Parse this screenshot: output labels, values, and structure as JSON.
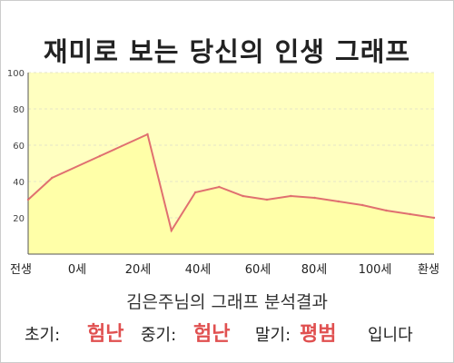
{
  "title": "재미로 보는 당신의 인생 그래프",
  "subtitle": "김은주님의 그래프 분석결과",
  "result": {
    "early_label": "초기:",
    "early_value": "험난",
    "mid_label": "중기:",
    "mid_value": "험난",
    "late_label": "말기:",
    "late_value": "평범",
    "suffix": "입니다"
  },
  "colors": {
    "line": "#e07070",
    "fill": "#ffffc0",
    "highlight": "#e05050"
  },
  "chart_data": {
    "type": "area",
    "x": [
      -5,
      0,
      10,
      20,
      25,
      30,
      35,
      40,
      45,
      50,
      55,
      60,
      65,
      70,
      75,
      80
    ],
    "y": [
      30,
      42,
      54,
      66,
      13,
      34,
      37,
      32,
      30,
      32,
      31,
      29,
      27,
      24,
      22,
      20
    ],
    "ylim": [
      0,
      100
    ],
    "yticks": [
      20,
      40,
      60,
      80,
      100
    ],
    "xticks": [
      {
        "label": "전생",
        "x": -7
      },
      {
        "label": "0세",
        "x": 0
      },
      {
        "label": "20세",
        "x": 20
      },
      {
        "label": "40세",
        "x": 40
      },
      {
        "label": "60세",
        "x": 60
      },
      {
        "label": "80세",
        "x": 80
      },
      {
        "label": "100세",
        "x": 100
      },
      {
        "label": "환생",
        "x": 120
      }
    ],
    "grid": true,
    "title": "",
    "xlabel": "",
    "ylabel": ""
  }
}
